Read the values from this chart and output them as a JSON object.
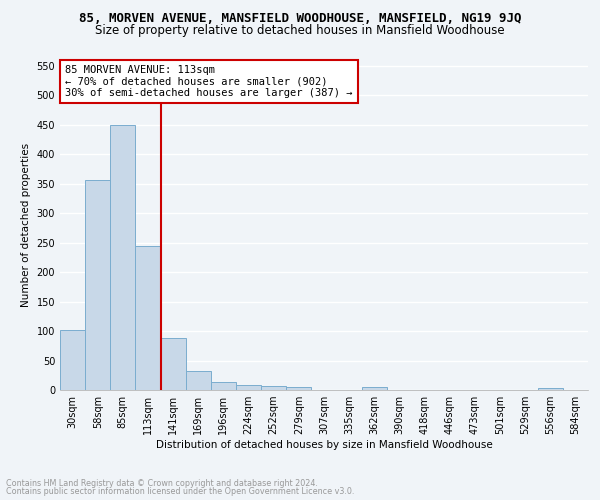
{
  "title": "85, MORVEN AVENUE, MANSFIELD WOODHOUSE, MANSFIELD, NG19 9JQ",
  "subtitle": "Size of property relative to detached houses in Mansfield Woodhouse",
  "xlabel": "Distribution of detached houses by size in Mansfield Woodhouse",
  "ylabel": "Number of detached properties",
  "footer1": "Contains HM Land Registry data © Crown copyright and database right 2024.",
  "footer2": "Contains public sector information licensed under the Open Government Licence v3.0.",
  "bar_labels": [
    "30sqm",
    "58sqm",
    "85sqm",
    "113sqm",
    "141sqm",
    "169sqm",
    "196sqm",
    "224sqm",
    "252sqm",
    "279sqm",
    "307sqm",
    "335sqm",
    "362sqm",
    "390sqm",
    "418sqm",
    "446sqm",
    "473sqm",
    "501sqm",
    "529sqm",
    "556sqm",
    "584sqm"
  ],
  "bar_values": [
    102,
    356,
    450,
    245,
    88,
    33,
    14,
    9,
    6,
    5,
    0,
    0,
    5,
    0,
    0,
    0,
    0,
    0,
    0,
    3,
    0
  ],
  "bar_color": "#c8d8e8",
  "bar_edge_color": "#7aadcf",
  "ylim": [
    0,
    560
  ],
  "yticks": [
    0,
    50,
    100,
    150,
    200,
    250,
    300,
    350,
    400,
    450,
    500,
    550
  ],
  "vline_x": 3.5,
  "vline_color": "#cc0000",
  "annotation_text": "85 MORVEN AVENUE: 113sqm\n← 70% of detached houses are smaller (902)\n30% of semi-detached houses are larger (387) →",
  "annotation_box_color": "#ffffff",
  "annotation_box_edge": "#cc0000",
  "bg_color": "#f0f4f8",
  "grid_color": "#ffffff",
  "title_fontsize": 9,
  "subtitle_fontsize": 8.5,
  "axis_label_fontsize": 7.5,
  "tick_fontsize": 7,
  "annotation_fontsize": 7.5,
  "footer_fontsize": 5.8
}
